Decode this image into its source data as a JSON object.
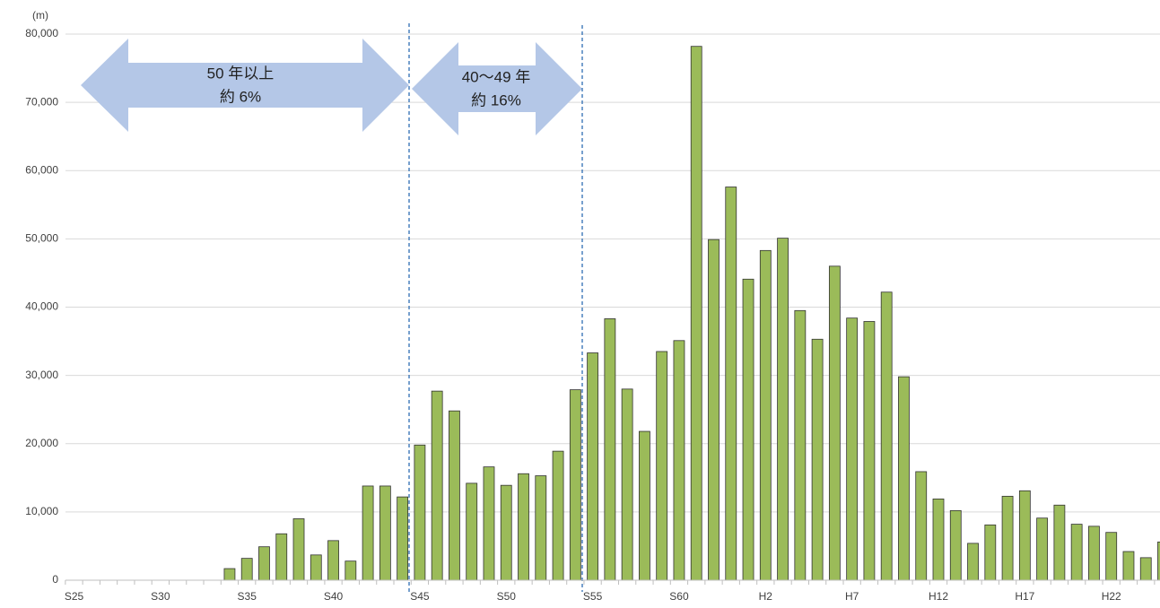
{
  "chart_data": {
    "type": "bar",
    "unit": "(m)",
    "categories": [
      "S25",
      null,
      null,
      null,
      null,
      "S30",
      null,
      null,
      null,
      null,
      "S35",
      null,
      null,
      null,
      null,
      "S40",
      null,
      null,
      null,
      null,
      "S45",
      null,
      null,
      null,
      null,
      "S50",
      null,
      null,
      null,
      null,
      "S55",
      null,
      null,
      null,
      null,
      "S60",
      null,
      null,
      null,
      null,
      "H2",
      null,
      null,
      null,
      null,
      "H7",
      null,
      null,
      null,
      null,
      "H12",
      null,
      null,
      null,
      null,
      "H17",
      null,
      null,
      null,
      null,
      "H22",
      null,
      null,
      null
    ],
    "values": [
      0,
      0,
      0,
      0,
      0,
      0,
      0,
      0,
      0,
      1700,
      3200,
      4900,
      6800,
      9000,
      3700,
      5800,
      2800,
      13800,
      13800,
      12200,
      19800,
      27700,
      24800,
      14200,
      16600,
      13900,
      15600,
      15300,
      18900,
      27900,
      33300,
      38300,
      28000,
      21800,
      33500,
      35100,
      78200,
      49900,
      57600,
      44100,
      48300,
      50100,
      39500,
      35300,
      46000,
      38400,
      37900,
      42200,
      29800,
      15900,
      11900,
      10200,
      5400,
      8100,
      12300,
      13100,
      9100,
      11000,
      8200,
      7900,
      7000,
      4200,
      3300,
      5600
    ],
    "color": "#9bbb59",
    "ylim": [
      0,
      80000
    ],
    "yticks": [
      0,
      {
        "value": 10000,
        "label": "10,000"
      },
      {
        "value": 20000,
        "label": "20,000"
      },
      {
        "value": 30000,
        "label": "30,000"
      },
      {
        "value": 40000,
        "label": "40,000"
      },
      {
        "value": 50000,
        "label": "50,000"
      },
      {
        "value": 60000,
        "label": "60,000"
      },
      {
        "value": 70000,
        "label": "70,000"
      },
      {
        "value": 80000,
        "label": "80,000"
      }
    ],
    "grid": true,
    "annotations": [
      {
        "line1": "50 年以上",
        "line2": "約 6%"
      },
      {
        "line1": "40～49 年",
        "line2": "約 16%"
      }
    ]
  }
}
